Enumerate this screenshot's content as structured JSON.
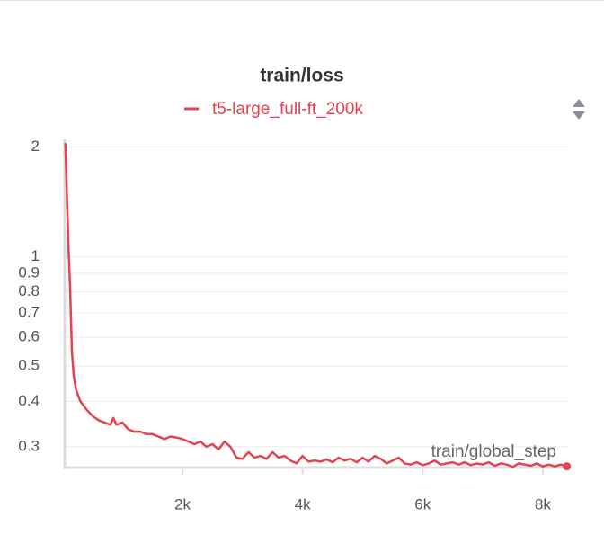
{
  "chart_data": {
    "type": "line",
    "title": "train/loss",
    "x_label": "train/global_step",
    "log_y": true,
    "grid": true,
    "legend": "top",
    "xlim": [
      40,
      8420
    ],
    "ylim": [
      0.263,
      2.1
    ],
    "xticks": [
      {
        "value": 2000,
        "label": "2k"
      },
      {
        "value": 4000,
        "label": "4k"
      },
      {
        "value": 6000,
        "label": "6k"
      },
      {
        "value": 8000,
        "label": "8k"
      }
    ],
    "yticks": [
      0.3,
      0.4,
      0.5,
      0.6,
      0.7,
      0.8,
      0.9,
      1,
      2
    ],
    "x": [
      50,
      100,
      130,
      160,
      190,
      230,
      300,
      400,
      500,
      600,
      700,
      800,
      850,
      900,
      1000,
      1100,
      1200,
      1300,
      1400,
      1500,
      1600,
      1700,
      1800,
      1900,
      2000,
      2100,
      2200,
      2300,
      2400,
      2500,
      2600,
      2700,
      2800,
      2900,
      3000,
      3100,
      3200,
      3300,
      3400,
      3500,
      3600,
      3700,
      3800,
      3900,
      4000,
      4100,
      4200,
      4300,
      4400,
      4500,
      4600,
      4700,
      4800,
      4900,
      5000,
      5100,
      5200,
      5300,
      5400,
      5500,
      5600,
      5700,
      5800,
      5900,
      6000,
      6100,
      6200,
      6300,
      6400,
      6500,
      6600,
      6700,
      6800,
      6900,
      7000,
      7100,
      7200,
      7300,
      7400,
      7500,
      7600,
      7700,
      7800,
      7900,
      8000,
      8100,
      8200,
      8300,
      8400
    ],
    "series": [
      {
        "name": "t5-large_full-ft_200k",
        "color": "#e5434f",
        "values": [
          2.05,
          1.1,
          0.82,
          0.55,
          0.47,
          0.43,
          0.4,
          0.38,
          0.365,
          0.355,
          0.35,
          0.345,
          0.36,
          0.345,
          0.35,
          0.335,
          0.33,
          0.33,
          0.325,
          0.325,
          0.32,
          0.315,
          0.32,
          0.318,
          0.315,
          0.31,
          0.305,
          0.31,
          0.3,
          0.305,
          0.295,
          0.31,
          0.3,
          0.28,
          0.278,
          0.29,
          0.28,
          0.283,
          0.278,
          0.29,
          0.28,
          0.283,
          0.275,
          0.27,
          0.283,
          0.273,
          0.275,
          0.273,
          0.277,
          0.272,
          0.28,
          0.275,
          0.278,
          0.272,
          0.28,
          0.273,
          0.283,
          0.278,
          0.27,
          0.275,
          0.28,
          0.27,
          0.268,
          0.272,
          0.267,
          0.27,
          0.275,
          0.268,
          0.27,
          0.272,
          0.268,
          0.272,
          0.267,
          0.27,
          0.268,
          0.272,
          0.266,
          0.27,
          0.268,
          0.264,
          0.27,
          0.268,
          0.266,
          0.27,
          0.265,
          0.268,
          0.265,
          0.268,
          0.265
        ]
      }
    ]
  }
}
